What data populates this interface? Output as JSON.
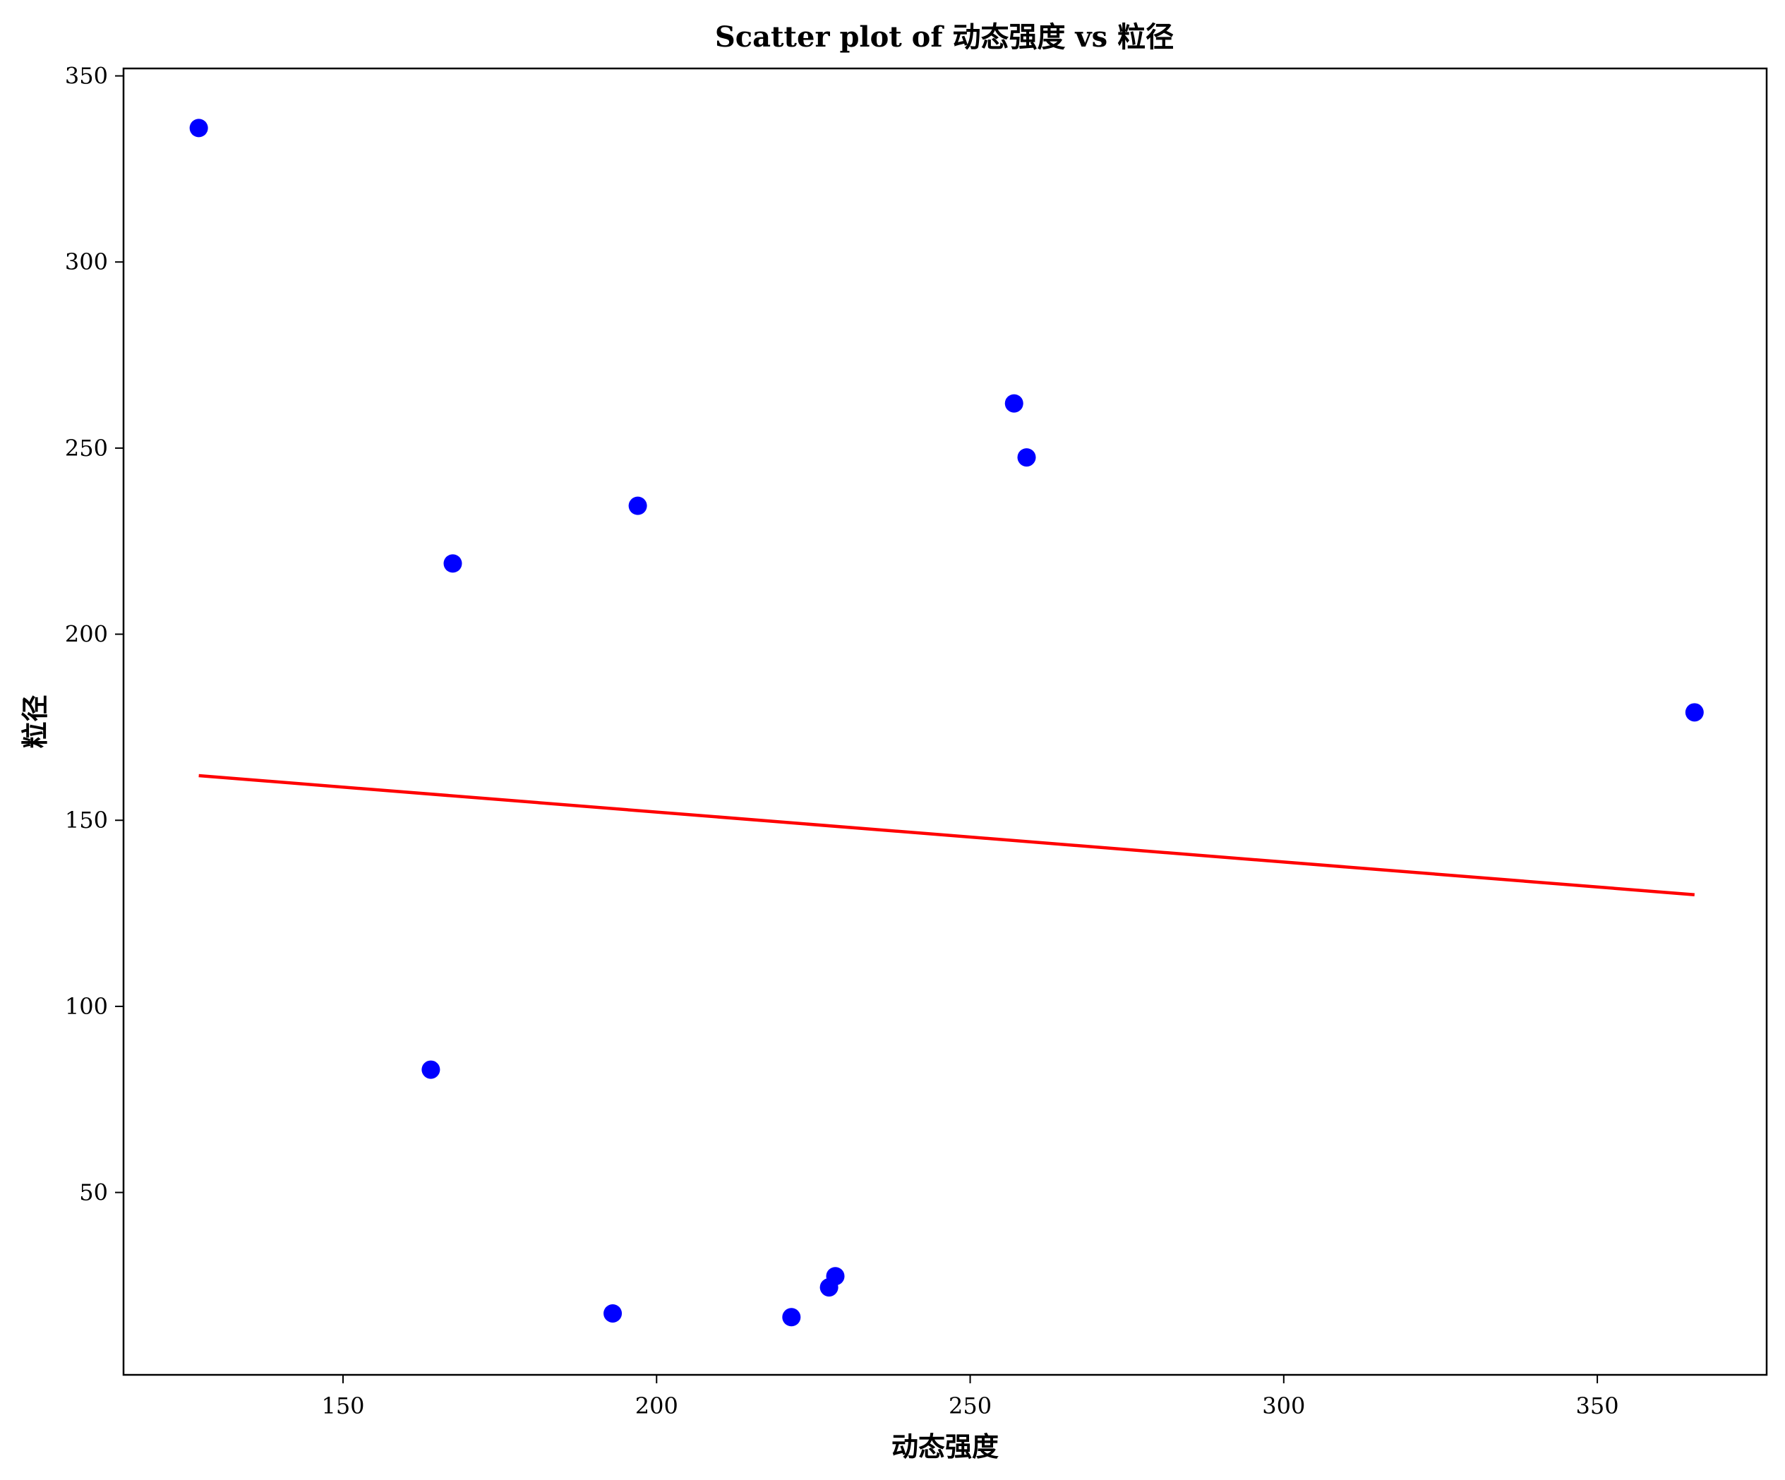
{
  "chart_data": {
    "type": "scatter",
    "title": "Scatter plot of 动态强度 vs 粒径",
    "xlabel": "动态强度",
    "ylabel": "粒径",
    "xlim": [
      115,
      377
    ],
    "ylim": [
      1,
      352
    ],
    "x_ticks": [
      150,
      200,
      250,
      300,
      350
    ],
    "y_ticks": [
      50,
      100,
      150,
      200,
      250,
      300,
      350
    ],
    "grid": false,
    "legend": "none",
    "series": [
      {
        "points": [
          {
            "x": 127,
            "y": 336
          },
          {
            "x": 164,
            "y": 83
          },
          {
            "x": 167.5,
            "y": 219
          },
          {
            "x": 193,
            "y": 17.5
          },
          {
            "x": 197,
            "y": 234.5
          },
          {
            "x": 221.5,
            "y": 16.5
          },
          {
            "x": 227.5,
            "y": 24.5
          },
          {
            "x": 228.5,
            "y": 27.5
          },
          {
            "x": 257,
            "y": 262
          },
          {
            "x": 259,
            "y": 247.5
          },
          {
            "x": 365.5,
            "y": 179
          }
        ],
        "color": "#0000ff"
      }
    ],
    "trend_line": {
      "x": [
        127,
        365.5
      ],
      "y": [
        162,
        130
      ],
      "color": "#ff0000"
    }
  }
}
